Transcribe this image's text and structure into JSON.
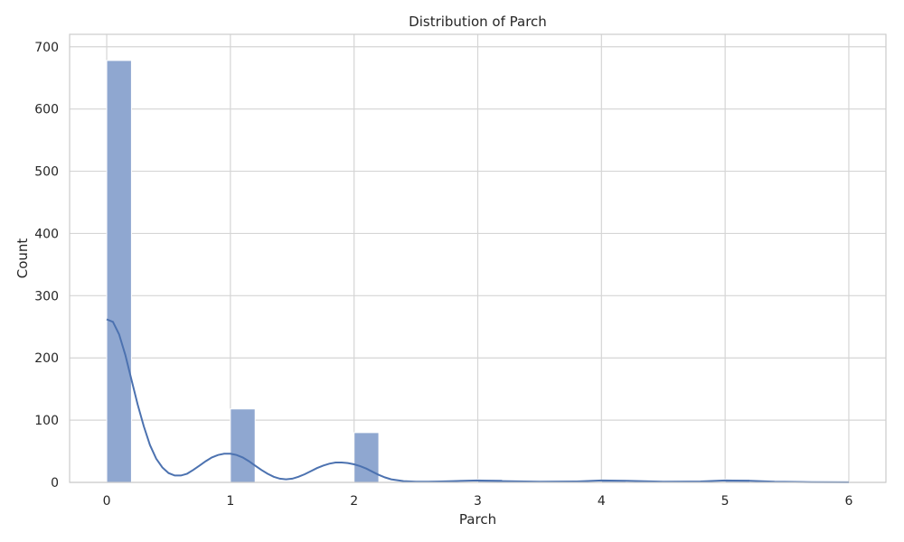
{
  "chart_data": {
    "type": "bar",
    "title": "Distribution of Parch",
    "xlabel": "Parch",
    "ylabel": "Count",
    "xlim": [
      -0.3,
      6.3
    ],
    "ylim": [
      0,
      720
    ],
    "x_ticks": [
      0,
      1,
      2,
      3,
      4,
      5,
      6
    ],
    "y_ticks": [
      0,
      100,
      200,
      300,
      400,
      500,
      600,
      700
    ],
    "grid": true,
    "bin_width": 0.2,
    "bins": [
      {
        "x0": 0.0,
        "x1": 0.2,
        "count": 678
      },
      {
        "x0": 1.0,
        "x1": 1.2,
        "count": 118
      },
      {
        "x0": 2.0,
        "x1": 2.2,
        "count": 80
      },
      {
        "x0": 3.0,
        "x1": 3.2,
        "count": 5
      },
      {
        "x0": 4.0,
        "x1": 4.2,
        "count": 4
      },
      {
        "x0": 5.0,
        "x1": 5.2,
        "count": 5
      },
      {
        "x0": 5.8,
        "x1": 6.0,
        "count": 1
      }
    ],
    "kde": {
      "x": [
        0,
        0.05,
        0.1,
        0.15,
        0.2,
        0.25,
        0.3,
        0.35,
        0.4,
        0.45,
        0.5,
        0.55,
        0.6,
        0.65,
        0.7,
        0.75,
        0.8,
        0.85,
        0.9,
        0.95,
        1.0,
        1.05,
        1.1,
        1.15,
        1.2,
        1.25,
        1.3,
        1.35,
        1.4,
        1.45,
        1.5,
        1.55,
        1.6,
        1.65,
        1.7,
        1.75,
        1.8,
        1.85,
        1.9,
        1.95,
        2.0,
        2.05,
        2.1,
        2.15,
        2.2,
        2.25,
        2.3,
        2.4,
        2.5,
        2.6,
        2.7,
        2.8,
        3.0,
        3.2,
        3.5,
        3.8,
        4.0,
        4.2,
        4.5,
        4.8,
        5.0,
        5.2,
        5.4,
        5.7,
        6.0
      ],
      "y": [
        262,
        258,
        238,
        205,
        165,
        125,
        90,
        60,
        38,
        24,
        15,
        11,
        11,
        14,
        20,
        27,
        34,
        40,
        44,
        46,
        46,
        44,
        40,
        34,
        27,
        20,
        14,
        9,
        6,
        5,
        6,
        9,
        13,
        18,
        23,
        27,
        30,
        32,
        32,
        31,
        29,
        26,
        22,
        17,
        12,
        8,
        5,
        2,
        1,
        1,
        1.5,
        2,
        3,
        2,
        1,
        1.5,
        3,
        2.5,
        1,
        1.5,
        3,
        2.5,
        1,
        0.5,
        0.2
      ]
    },
    "colors": {
      "bar": "#8fa7d0",
      "kde": "#4c72b0"
    }
  }
}
